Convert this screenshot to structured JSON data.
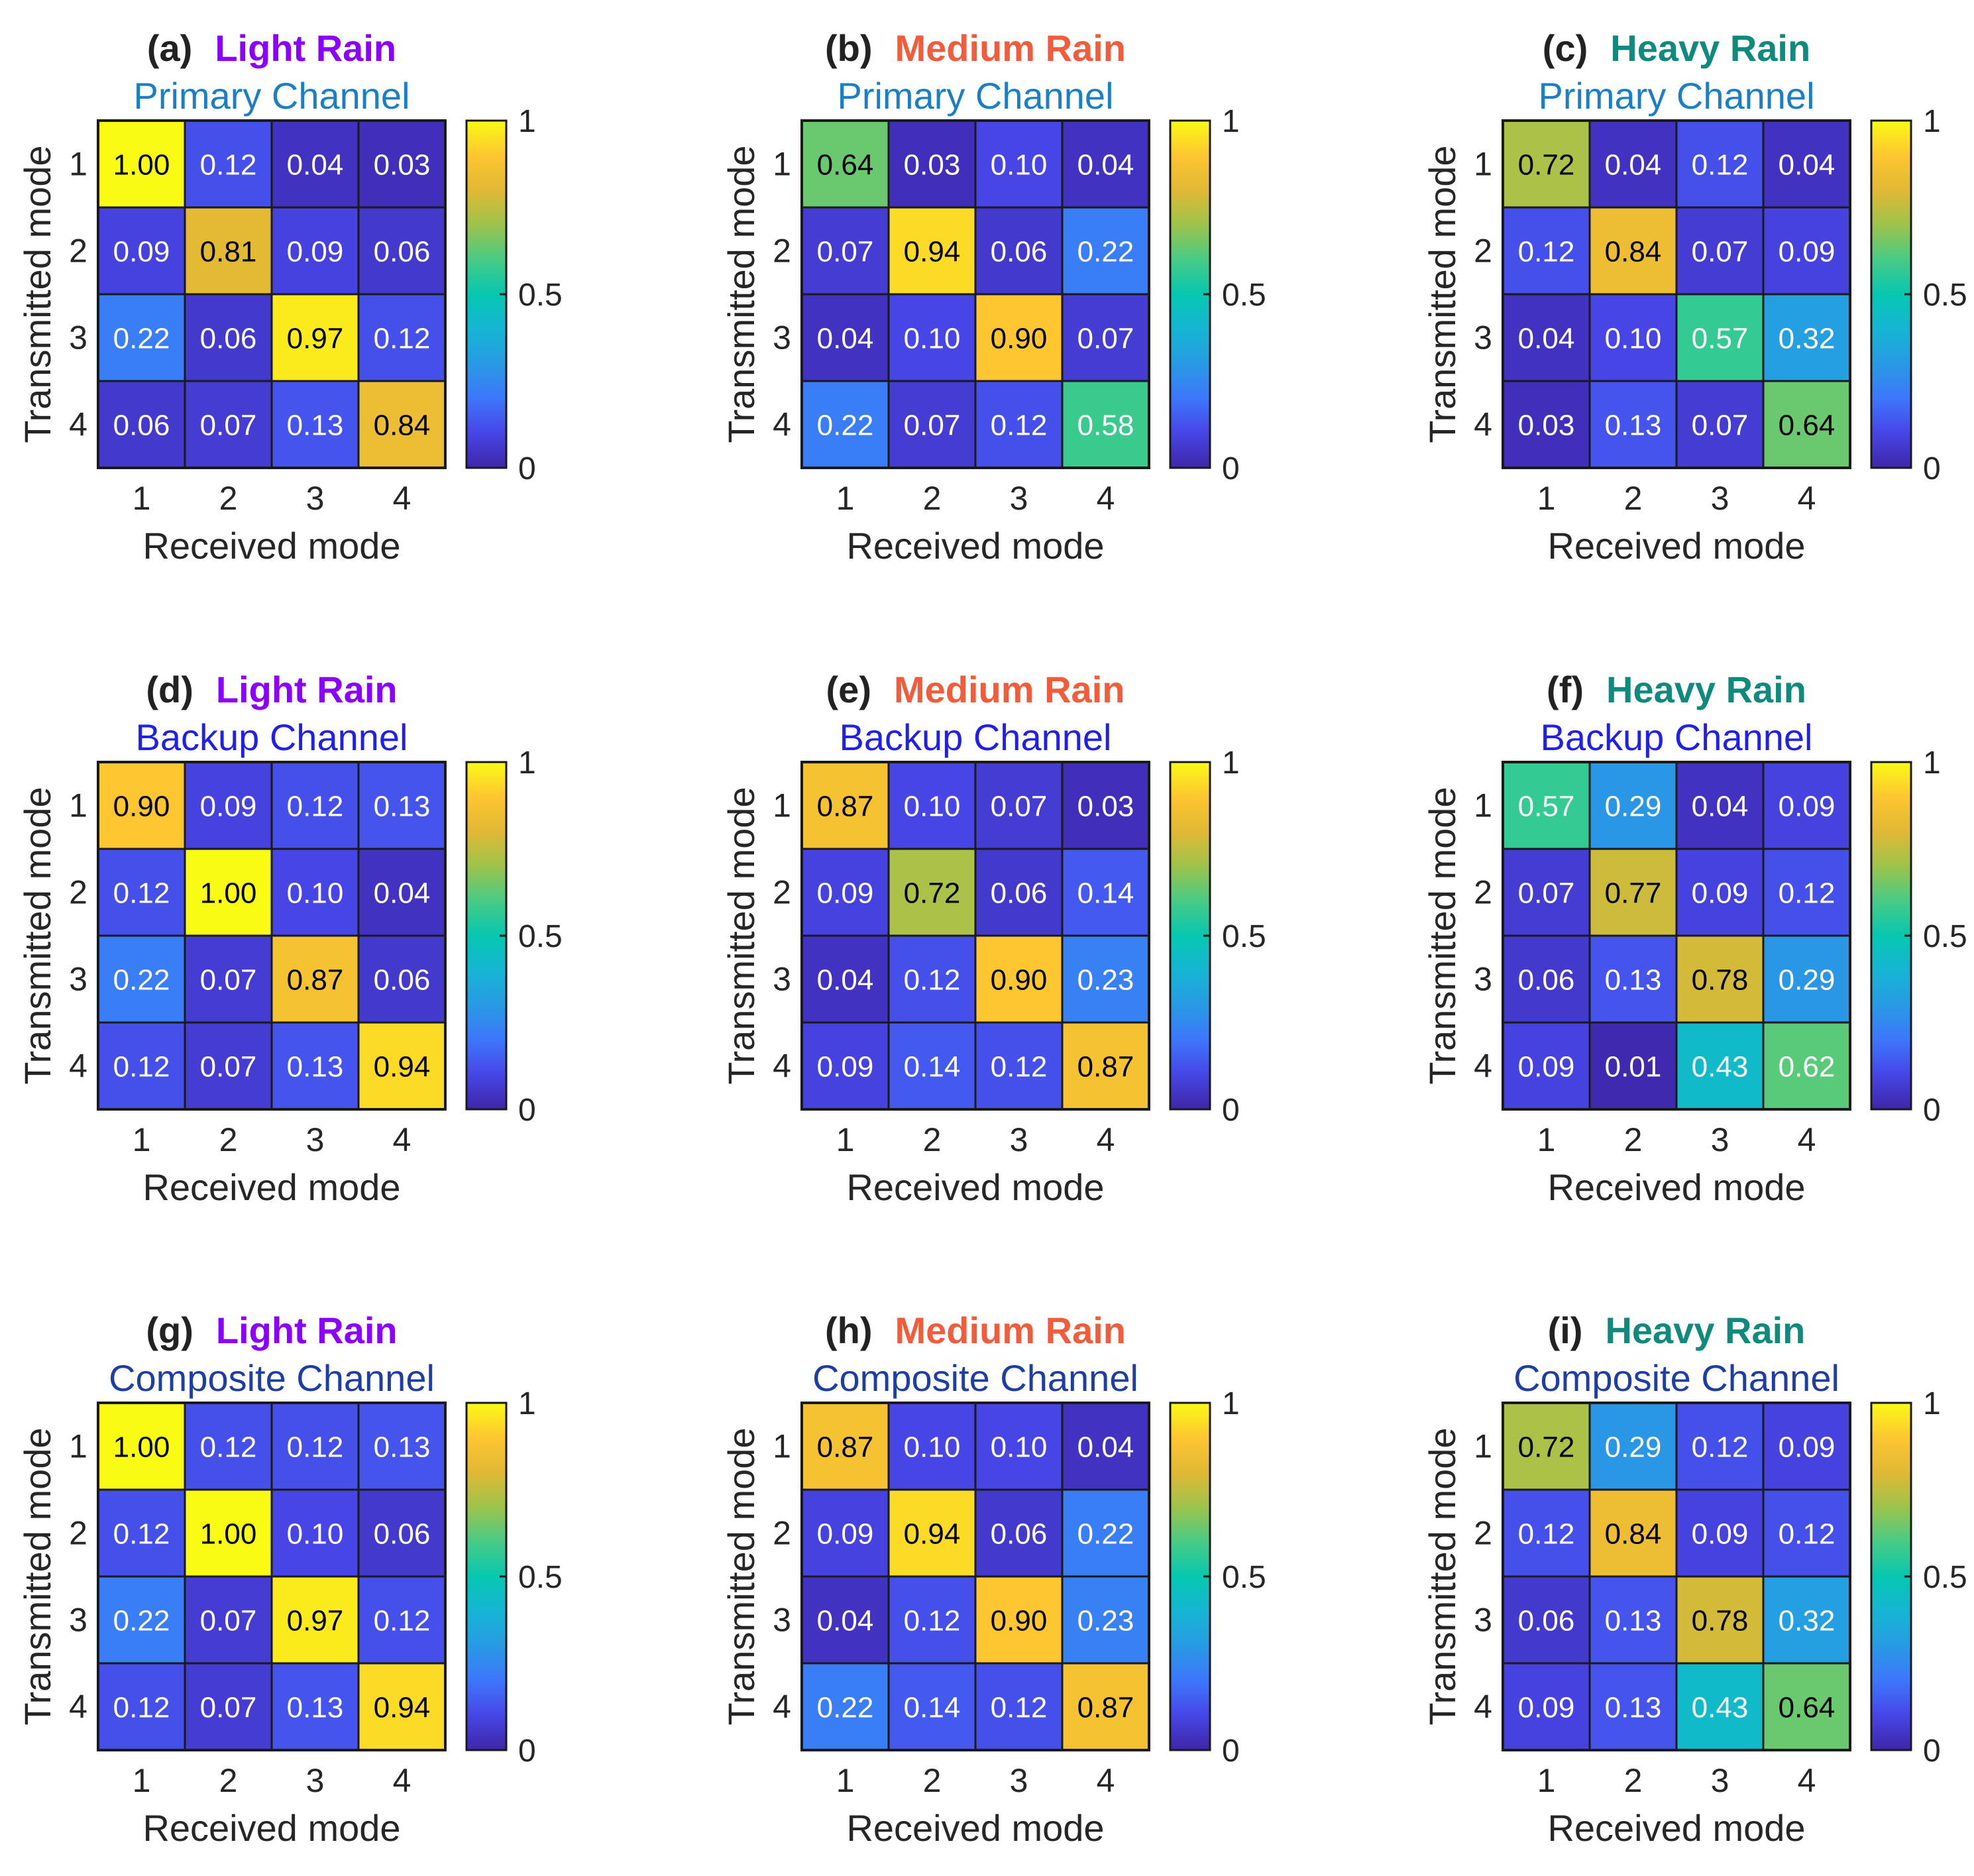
{
  "figure": {
    "xlabel": "Received mode",
    "ylabel": "Transmitted mode",
    "tick_labels": [
      "1",
      "2",
      "3",
      "4"
    ],
    "colorbar": {
      "min": 0,
      "max": 1,
      "ticks": [
        0,
        0.5,
        1
      ],
      "tick_labels": [
        "0",
        "0.5",
        "1"
      ],
      "colormap": "parula"
    }
  },
  "colors": {
    "light_rain": "#8b00ff",
    "medium_rain": "#f25c3a",
    "heavy_rain": "#108a7c",
    "primary_channel": "#1a7fc6",
    "backup_channel": "#1f1ff0",
    "composite_channel": "#1c3ea6",
    "panel_label": "#222222"
  },
  "chart_data": [
    {
      "type": "heatmap",
      "panel": "(a)",
      "condition": "Light Rain",
      "condition_color": "light_rain",
      "channel": "Primary Channel",
      "channel_color": "primary_channel",
      "xlabel": "Received mode",
      "ylabel": "Transmitted mode",
      "categories": [
        "1",
        "2",
        "3",
        "4"
      ],
      "values": [
        [
          1.0,
          0.12,
          0.04,
          0.03
        ],
        [
          0.09,
          0.81,
          0.09,
          0.06
        ],
        [
          0.22,
          0.06,
          0.97,
          0.12
        ],
        [
          0.06,
          0.07,
          0.13,
          0.84
        ]
      ],
      "labels": [
        [
          "1.00",
          "0.12",
          "0.04",
          "0.03"
        ],
        [
          "0.09",
          "0.81",
          "0.09",
          "0.06"
        ],
        [
          "0.22",
          "0.06",
          "0.97",
          "0.12"
        ],
        [
          "0.06",
          "0.07",
          "0.13",
          "0.84"
        ]
      ]
    },
    {
      "type": "heatmap",
      "panel": "(b)",
      "condition": "Medium Rain",
      "condition_color": "medium_rain",
      "channel": "Primary Channel",
      "channel_color": "primary_channel",
      "xlabel": "Received mode",
      "ylabel": "Transmitted mode",
      "categories": [
        "1",
        "2",
        "3",
        "4"
      ],
      "values": [
        [
          0.64,
          0.03,
          0.1,
          0.04
        ],
        [
          0.07,
          0.94,
          0.06,
          0.22
        ],
        [
          0.04,
          0.1,
          0.9,
          0.07
        ],
        [
          0.22,
          0.07,
          0.12,
          0.58
        ]
      ],
      "labels": [
        [
          "0.64",
          "0.03",
          "0.10",
          "0.04"
        ],
        [
          "0.07",
          "0.94",
          "0.06",
          "0.22"
        ],
        [
          "0.04",
          "0.10",
          "0.90",
          "0.07"
        ],
        [
          "0.22",
          "0.07",
          "0.12",
          "0.58"
        ]
      ]
    },
    {
      "type": "heatmap",
      "panel": "(c)",
      "condition": "Heavy Rain",
      "condition_color": "heavy_rain",
      "channel": "Primary Channel",
      "channel_color": "primary_channel",
      "xlabel": "Received mode",
      "ylabel": "Transmitted mode",
      "categories": [
        "1",
        "2",
        "3",
        "4"
      ],
      "values": [
        [
          0.72,
          0.04,
          0.12,
          0.04
        ],
        [
          0.12,
          0.84,
          0.07,
          0.09
        ],
        [
          0.04,
          0.1,
          0.57,
          0.32
        ],
        [
          0.03,
          0.13,
          0.07,
          0.64
        ]
      ],
      "labels": [
        [
          "0.72",
          "0.04",
          "0.12",
          "0.04"
        ],
        [
          "0.12",
          "0.84",
          "0.07",
          "0.09"
        ],
        [
          "0.04",
          "0.10",
          "0.57",
          "0.32"
        ],
        [
          "0.03",
          "0.13",
          "0.07",
          "0.64"
        ]
      ]
    },
    {
      "type": "heatmap",
      "panel": "(d)",
      "condition": "Light Rain",
      "condition_color": "light_rain",
      "channel": "Backup Channel",
      "channel_color": "backup_channel",
      "xlabel": "Received mode",
      "ylabel": "Transmitted mode",
      "categories": [
        "1",
        "2",
        "3",
        "4"
      ],
      "values": [
        [
          0.9,
          0.09,
          0.12,
          0.13
        ],
        [
          0.12,
          1.0,
          0.1,
          0.04
        ],
        [
          0.22,
          0.07,
          0.87,
          0.06
        ],
        [
          0.12,
          0.07,
          0.13,
          0.94
        ]
      ],
      "labels": [
        [
          "0.90",
          "0.09",
          "0.12",
          "0.13"
        ],
        [
          "0.12",
          "1.00",
          "0.10",
          "0.04"
        ],
        [
          "0.22",
          "0.07",
          "0.87",
          "0.06"
        ],
        [
          "0.12",
          "0.07",
          "0.13",
          "0.94"
        ]
      ]
    },
    {
      "type": "heatmap",
      "panel": "(e)",
      "condition": "Medium Rain",
      "condition_color": "medium_rain",
      "channel": "Backup Channel",
      "channel_color": "backup_channel",
      "xlabel": "Received mode",
      "ylabel": "Transmitted mode",
      "categories": [
        "1",
        "2",
        "3",
        "4"
      ],
      "values": [
        [
          0.87,
          0.1,
          0.07,
          0.03
        ],
        [
          0.09,
          0.72,
          0.06,
          0.14
        ],
        [
          0.04,
          0.12,
          0.9,
          0.23
        ],
        [
          0.09,
          0.14,
          0.12,
          0.87
        ]
      ],
      "labels": [
        [
          "0.87",
          "0.10",
          "0.07",
          "0.03"
        ],
        [
          "0.09",
          "0.72",
          "0.06",
          "0.14"
        ],
        [
          "0.04",
          "0.12",
          "0.90",
          "0.23"
        ],
        [
          "0.09",
          "0.14",
          "0.12",
          "0.87"
        ]
      ]
    },
    {
      "type": "heatmap",
      "panel": "(f)",
      "condition": "Heavy Rain",
      "condition_color": "heavy_rain",
      "channel": "Backup Channel",
      "channel_color": "backup_channel",
      "xlabel": "Received mode",
      "ylabel": "Transmitted mode",
      "categories": [
        "1",
        "2",
        "3",
        "4"
      ],
      "values": [
        [
          0.57,
          0.29,
          0.04,
          0.09
        ],
        [
          0.07,
          0.77,
          0.09,
          0.12
        ],
        [
          0.06,
          0.13,
          0.78,
          0.29
        ],
        [
          0.09,
          0.01,
          0.43,
          0.62
        ]
      ],
      "labels": [
        [
          "0.57",
          "0.29",
          "0.04",
          "0.09"
        ],
        [
          "0.07",
          "0.77",
          "0.09",
          "0.12"
        ],
        [
          "0.06",
          "0.13",
          "0.78",
          "0.29"
        ],
        [
          "0.09",
          "0.01",
          "0.43",
          "0.62"
        ]
      ]
    },
    {
      "type": "heatmap",
      "panel": "(g)",
      "condition": "Light Rain",
      "condition_color": "light_rain",
      "channel": "Composite Channel",
      "channel_color": "composite_channel",
      "xlabel": "Received mode",
      "ylabel": "Transmitted mode",
      "categories": [
        "1",
        "2",
        "3",
        "4"
      ],
      "values": [
        [
          1.0,
          0.12,
          0.12,
          0.13
        ],
        [
          0.12,
          1.0,
          0.1,
          0.06
        ],
        [
          0.22,
          0.07,
          0.97,
          0.12
        ],
        [
          0.12,
          0.07,
          0.13,
          0.94
        ]
      ],
      "labels": [
        [
          "1.00",
          "0.12",
          "0.12",
          "0.13"
        ],
        [
          "0.12",
          "1.00",
          "0.10",
          "0.06"
        ],
        [
          "0.22",
          "0.07",
          "0.97",
          "0.12"
        ],
        [
          "0.12",
          "0.07",
          "0.13",
          "0.94"
        ]
      ]
    },
    {
      "type": "heatmap",
      "panel": "(h)",
      "condition": "Medium Rain",
      "condition_color": "medium_rain",
      "channel": "Composite Channel",
      "channel_color": "composite_channel",
      "xlabel": "Received mode",
      "ylabel": "Transmitted mode",
      "categories": [
        "1",
        "2",
        "3",
        "4"
      ],
      "values": [
        [
          0.87,
          0.1,
          0.1,
          0.04
        ],
        [
          0.09,
          0.94,
          0.06,
          0.22
        ],
        [
          0.04,
          0.12,
          0.9,
          0.23
        ],
        [
          0.22,
          0.14,
          0.12,
          0.87
        ]
      ],
      "labels": [
        [
          "0.87",
          "0.10",
          "0.10",
          "0.04"
        ],
        [
          "0.09",
          "0.94",
          "0.06",
          "0.22"
        ],
        [
          "0.04",
          "0.12",
          "0.90",
          "0.23"
        ],
        [
          "0.22",
          "0.14",
          "0.12",
          "0.87"
        ]
      ]
    },
    {
      "type": "heatmap",
      "panel": "(i)",
      "condition": "Heavy Rain",
      "condition_color": "heavy_rain",
      "channel": "Composite Channel",
      "channel_color": "composite_channel",
      "xlabel": "Received mode",
      "ylabel": "Transmitted mode",
      "categories": [
        "1",
        "2",
        "3",
        "4"
      ],
      "values": [
        [
          0.72,
          0.29,
          0.12,
          0.09
        ],
        [
          0.12,
          0.84,
          0.09,
          0.12
        ],
        [
          0.06,
          0.13,
          0.78,
          0.32
        ],
        [
          0.09,
          0.13,
          0.43,
          0.64
        ]
      ],
      "labels": [
        [
          "0.72",
          "0.29",
          "0.12",
          "0.09"
        ],
        [
          "0.12",
          "0.84",
          "0.09",
          "0.12"
        ],
        [
          "0.06",
          "0.13",
          "0.78",
          "0.32"
        ],
        [
          "0.09",
          "0.13",
          "0.43",
          "0.64"
        ]
      ]
    }
  ]
}
